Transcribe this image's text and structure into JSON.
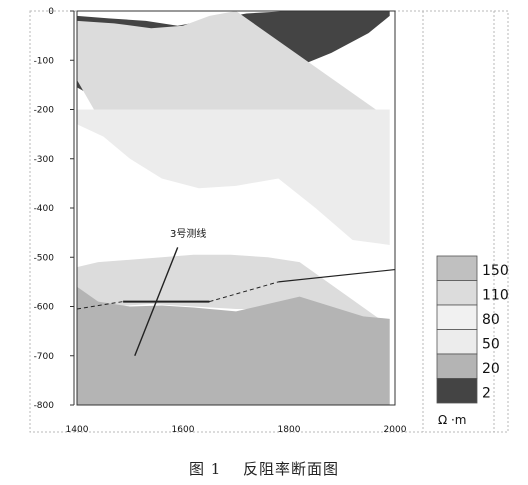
{
  "chart_data": {
    "type": "heatmap",
    "title": "反阻率断面图",
    "xlabel": "",
    "ylabel": "",
    "xlim": [
      1400,
      2000
    ],
    "ylim": [
      -800,
      0
    ],
    "x_ticks": [
      "1400",
      "1600",
      "1800",
      "2000"
    ],
    "y_ticks": [
      "0",
      "-100",
      "-200",
      "-300",
      "-400",
      "-500",
      "-600",
      "-700",
      "-800"
    ],
    "annotation": "3号测线",
    "legend": {
      "placement": "right",
      "unit": "Ω ·m",
      "levels": [
        {
          "label": "150",
          "color": "#c0c0c0"
        },
        {
          "label": "110",
          "color": "#dcdcdc"
        },
        {
          "label": "80",
          "color": "#f1f1f1"
        },
        {
          "label": "50",
          "color": "#ececec"
        },
        {
          "label": "20",
          "color": "#b4b4b4"
        },
        {
          "label": "2",
          "color": "#444444"
        }
      ]
    },
    "bands": [
      {
        "name": "low",
        "color": "#444444",
        "top": [
          [
            1400,
            -10
          ],
          [
            1460,
            -15
          ],
          [
            1530,
            -20
          ],
          [
            1590,
            -30
          ],
          [
            1640,
            -20
          ],
          [
            1720,
            -5
          ],
          [
            1800,
            0
          ],
          [
            1990,
            0
          ]
        ],
        "bottom": [
          [
            1400,
            -155
          ],
          [
            1450,
            -185
          ],
          [
            1520,
            -195
          ],
          [
            1590,
            -190
          ],
          [
            1660,
            -175
          ],
          [
            1730,
            -150
          ],
          [
            1800,
            -120
          ],
          [
            1880,
            -85
          ],
          [
            1950,
            -45
          ],
          [
            1990,
            -10
          ]
        ]
      },
      {
        "name": "mid-upper",
        "color": "#dcdcdc",
        "top": [
          [
            1400,
            -20
          ],
          [
            1470,
            -25
          ],
          [
            1540,
            -35
          ],
          [
            1600,
            -30
          ],
          [
            1650,
            -10
          ],
          [
            1700,
            0
          ]
        ],
        "bottom": [
          [
            1400,
            -140
          ],
          [
            1440,
            -215
          ],
          [
            1490,
            -250
          ],
          [
            1560,
            -255
          ],
          [
            1630,
            -255
          ],
          [
            1700,
            -245
          ],
          [
            1780,
            -225
          ],
          [
            1860,
            -210
          ],
          [
            1940,
            -215
          ],
          [
            1990,
            -220
          ]
        ]
      },
      {
        "name": "mid-light",
        "color": "#ececec",
        "top": [
          [
            1400,
            -230
          ],
          [
            1450,
            -255
          ],
          [
            1500,
            -300
          ],
          [
            1560,
            -340
          ],
          [
            1630,
            -360
          ],
          [
            1700,
            -355
          ],
          [
            1780,
            -340
          ]
        ],
        "bottom": [
          [
            1780,
            -340
          ],
          [
            1850,
            -400
          ],
          [
            1920,
            -465
          ],
          [
            1990,
            -475
          ]
        ]
      },
      {
        "name": "deep-light",
        "color": "#dcdcdc",
        "top": [
          [
            1400,
            -520
          ],
          [
            1440,
            -510
          ],
          [
            1500,
            -505
          ],
          [
            1560,
            -500
          ],
          [
            1620,
            -495
          ],
          [
            1690,
            -495
          ],
          [
            1760,
            -500
          ],
          [
            1820,
            -510
          ]
        ],
        "bottom": [
          [
            1400,
            -610
          ],
          [
            1460,
            -600
          ],
          [
            1540,
            -595
          ],
          [
            1620,
            -600
          ],
          [
            1700,
            -605
          ],
          [
            1780,
            -605
          ],
          [
            1860,
            -610
          ],
          [
            1940,
            -630
          ],
          [
            1990,
            -640
          ]
        ]
      },
      {
        "name": "deep-dark",
        "color": "#b4b4b4",
        "top": [
          [
            1400,
            -560
          ],
          [
            1440,
            -590
          ],
          [
            1500,
            -600
          ],
          [
            1560,
            -598
          ],
          [
            1620,
            -602
          ],
          [
            1700,
            -610
          ],
          [
            1760,
            -595
          ],
          [
            1820,
            -580
          ],
          [
            1880,
            -600
          ],
          [
            1940,
            -620
          ],
          [
            1990,
            -625
          ]
        ],
        "bottom": [
          [
            1400,
            -800
          ],
          [
            1990,
            -800
          ]
        ]
      }
    ],
    "lines": [
      {
        "name": "survey-line-3",
        "style": "solid",
        "width": 1.4,
        "points": [
          [
            1509,
            -700
          ],
          [
            1590,
            -480
          ]
        ]
      },
      {
        "name": "horizon-solid-left",
        "style": "solid",
        "width": 2,
        "points": [
          [
            1487,
            -590
          ],
          [
            1650,
            -590
          ]
        ]
      },
      {
        "name": "horizon-dashed-left",
        "style": "dashed",
        "width": 1,
        "points": [
          [
            1400,
            -605
          ],
          [
            1487,
            -590
          ]
        ]
      },
      {
        "name": "horizon-dashed-mid",
        "style": "dashed",
        "width": 1,
        "points": [
          [
            1650,
            -590
          ],
          [
            1780,
            -550
          ]
        ]
      },
      {
        "name": "horizon-solid-right",
        "style": "solid",
        "width": 1.2,
        "points": [
          [
            1780,
            -550
          ],
          [
            2000,
            -525
          ]
        ]
      }
    ]
  },
  "caption": {
    "figure_label": "图 1",
    "text": "反阻率断面图"
  }
}
